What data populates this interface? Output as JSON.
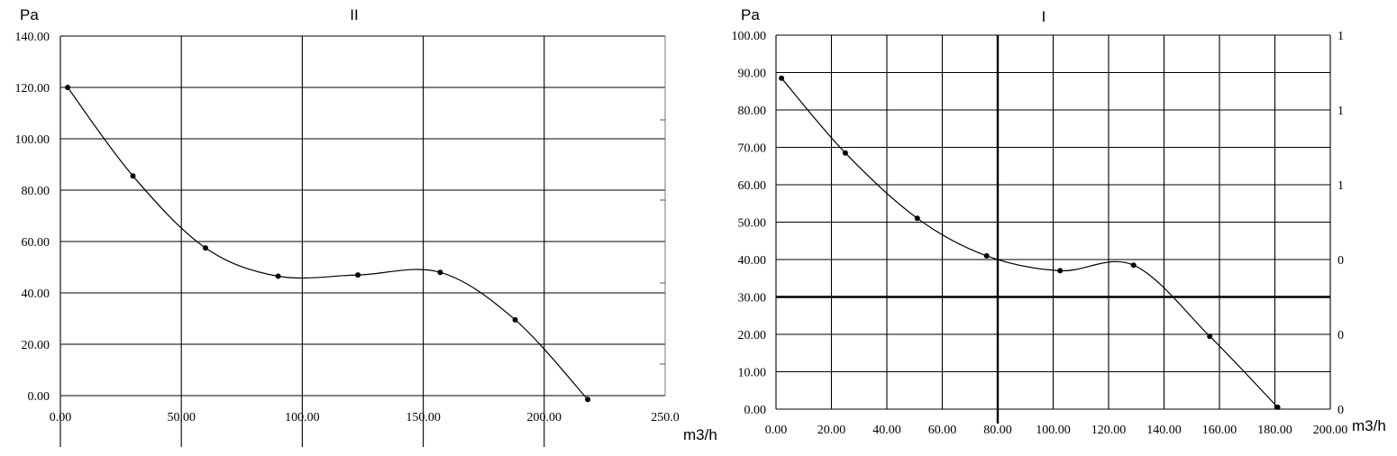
{
  "chart_data": [
    {
      "type": "line",
      "title": "II",
      "ylabel": "Pa",
      "xlabel": "m3/h",
      "xlim": [
        0,
        250
      ],
      "ylim": [
        0,
        140
      ],
      "x_ticks": [
        "0.00",
        "50.00",
        "100.00",
        "150.00",
        "200.00",
        "250.0"
      ],
      "y_ticks": [
        "0.00",
        "20.00",
        "40.00",
        "60.00",
        "80.00",
        "100.00",
        "120.00",
        "140.00"
      ],
      "grid": true,
      "series": [
        {
          "points": [
            [
              3,
              120
            ],
            [
              30,
              85.5
            ],
            [
              60,
              57.5
            ],
            [
              90,
              46.5
            ],
            [
              123,
              47
            ],
            [
              157,
              48
            ],
            [
              188,
              29.5
            ],
            [
              218,
              -1.5
            ]
          ]
        }
      ]
    },
    {
      "type": "line",
      "title": "I",
      "ylabel": "Pa",
      "xlabel": "m3/h",
      "xlim": [
        0,
        200
      ],
      "ylim": [
        0,
        100
      ],
      "x_ticks": [
        "0.00",
        "20.00",
        "40.00",
        "60.00",
        "80.00",
        "100.00",
        "120.00",
        "140.00",
        "160.00",
        "180.00",
        "200.00"
      ],
      "y_ticks": [
        "0.00",
        "10.00",
        "20.00",
        "30.00",
        "40.00",
        "50.00",
        "60.00",
        "70.00",
        "80.00",
        "90.00",
        "100.00"
      ],
      "right_ticks": [
        "1",
        "1",
        "1",
        "0",
        "0",
        "0"
      ],
      "grid": true,
      "series": [
        {
          "points": [
            [
              2,
              88.5
            ],
            [
              25,
              68.5
            ],
            [
              51,
              51
            ],
            [
              76,
              41
            ],
            [
              102.5,
              37
            ],
            [
              129,
              38.5
            ],
            [
              156.5,
              19.5
            ],
            [
              181,
              0.5
            ]
          ]
        }
      ]
    }
  ]
}
